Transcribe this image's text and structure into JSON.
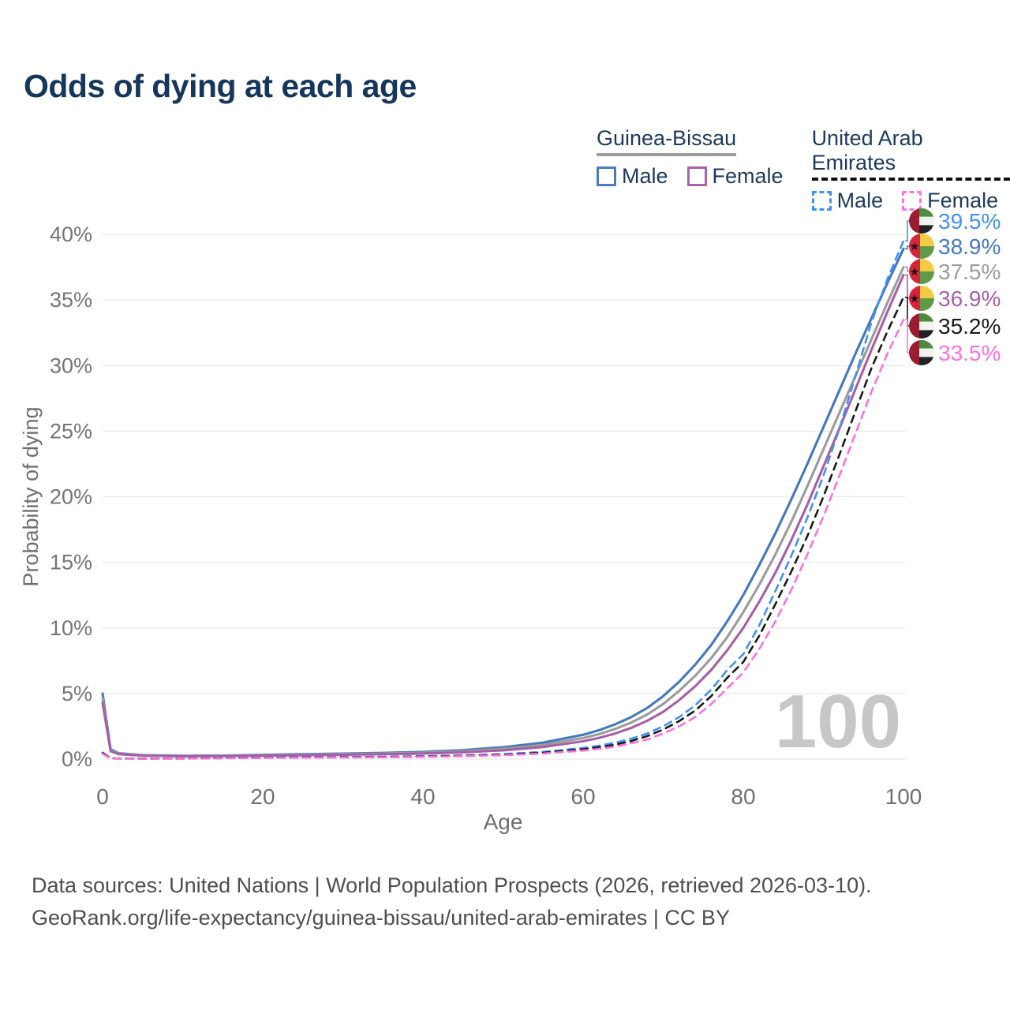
{
  "title": "Odds of dying at each age",
  "legend": {
    "groups": [
      {
        "name": "Guinea-Bissau",
        "line_style": "solid",
        "underline_color": "#9e9e9e",
        "items": [
          {
            "label": "Male",
            "color": "#4a7dbe"
          },
          {
            "label": "Female",
            "color": "#a963a9"
          }
        ]
      },
      {
        "name": "United Arab Emirates",
        "line_style": "dashed",
        "underline_color": "#111111",
        "items": [
          {
            "label": "Male",
            "color": "#3f8fee"
          },
          {
            "label": "Female",
            "color": "#ff74dd"
          }
        ]
      }
    ]
  },
  "chart_data": {
    "type": "line",
    "title": "Odds of dying at each age",
    "xlabel": "Age",
    "ylabel": "Probability of dying",
    "xlim": [
      0,
      100
    ],
    "ylim_percent": [
      0,
      40
    ],
    "xticks": [
      0,
      20,
      40,
      60,
      80,
      100
    ],
    "yticks_percent": [
      0,
      5,
      10,
      15,
      20,
      25,
      30,
      35,
      40
    ],
    "grid": "horizontal",
    "age_watermark": "100",
    "x": [
      0,
      1,
      2,
      5,
      10,
      15,
      20,
      25,
      30,
      35,
      40,
      45,
      50,
      55,
      60,
      62,
      64,
      66,
      68,
      70,
      72,
      74,
      76,
      78,
      80,
      82,
      84,
      86,
      88,
      90,
      92,
      94,
      96,
      98,
      100
    ],
    "series": [
      {
        "id": "guinea-bissau-male",
        "name": "Guinea-Bissau Male",
        "flag": "guinea-bissau",
        "dashed": false,
        "color": "#4478bd",
        "end_label": "38.9%",
        "values": [
          5.0,
          0.75,
          0.45,
          0.3,
          0.25,
          0.27,
          0.32,
          0.37,
          0.42,
          0.47,
          0.55,
          0.68,
          0.9,
          1.25,
          1.85,
          2.2,
          2.65,
          3.2,
          3.9,
          4.8,
          5.9,
          7.2,
          8.7,
          10.5,
          12.5,
          14.8,
          17.2,
          19.8,
          22.5,
          25.3,
          28.1,
          30.9,
          33.6,
          36.3,
          38.9
        ]
      },
      {
        "id": "guinea-bissau-both",
        "name": "Guinea-Bissau Both sexes",
        "flag": "guinea-bissau",
        "dashed": false,
        "color": "#9b9b9b",
        "end_label": "37.5%",
        "values": [
          4.65,
          0.68,
          0.42,
          0.28,
          0.23,
          0.25,
          0.29,
          0.33,
          0.38,
          0.42,
          0.49,
          0.6,
          0.78,
          1.08,
          1.6,
          1.9,
          2.3,
          2.78,
          3.4,
          4.2,
          5.2,
          6.35,
          7.7,
          9.3,
          11.2,
          13.3,
          15.6,
          18.1,
          20.8,
          23.6,
          26.4,
          29.2,
          32.0,
          34.8,
          37.5
        ]
      },
      {
        "id": "guinea-bissau-female",
        "name": "Guinea-Bissau Female",
        "flag": "guinea-bissau",
        "dashed": false,
        "color": "#a560a5",
        "end_label": "36.9%",
        "values": [
          4.3,
          0.6,
          0.38,
          0.26,
          0.21,
          0.22,
          0.26,
          0.29,
          0.33,
          0.37,
          0.43,
          0.52,
          0.67,
          0.92,
          1.36,
          1.62,
          1.95,
          2.38,
          2.92,
          3.6,
          4.5,
          5.55,
          6.8,
          8.3,
          10.0,
          12.0,
          14.2,
          16.7,
          19.4,
          22.3,
          25.2,
          28.2,
          31.2,
          34.1,
          36.9
        ]
      },
      {
        "id": "united-arab-emirates-male",
        "name": "United Arab Emirates Male",
        "flag": "united-arab-emirates",
        "dashed": true,
        "color": "#4191f2",
        "end_label": "39.5%",
        "values": [
          0.5,
          0.06,
          0.05,
          0.04,
          0.05,
          0.08,
          0.12,
          0.14,
          0.16,
          0.18,
          0.22,
          0.28,
          0.38,
          0.55,
          0.85,
          1.02,
          1.25,
          1.55,
          1.95,
          2.5,
          3.2,
          4.1,
          5.3,
          6.8,
          8.0,
          10.2,
          12.8,
          15.5,
          18.4,
          21.6,
          25.2,
          29.2,
          33.3,
          36.6,
          39.5
        ]
      },
      {
        "id": "united-arab-emirates-both",
        "name": "United Arab Emirates Both sexes",
        "flag": "united-arab-emirates",
        "dashed": true,
        "color": "#1a1a1a",
        "end_label": "35.2%",
        "values": [
          0.45,
          0.055,
          0.045,
          0.035,
          0.045,
          0.07,
          0.1,
          0.12,
          0.14,
          0.16,
          0.19,
          0.25,
          0.33,
          0.48,
          0.75,
          0.9,
          1.1,
          1.38,
          1.75,
          2.25,
          2.9,
          3.7,
          4.8,
          6.2,
          7.4,
          9.4,
          11.8,
          14.3,
          17.0,
          20.0,
          23.2,
          26.5,
          29.8,
          32.6,
          35.2
        ]
      },
      {
        "id": "united-arab-emirates-female",
        "name": "United Arab Emirates Female",
        "flag": "united-arab-emirates",
        "dashed": true,
        "color": "#ff70dd",
        "end_label": "33.5%",
        "values": [
          0.4,
          0.05,
          0.04,
          0.03,
          0.04,
          0.06,
          0.09,
          0.1,
          0.12,
          0.14,
          0.17,
          0.22,
          0.29,
          0.42,
          0.65,
          0.78,
          0.95,
          1.2,
          1.5,
          1.95,
          2.5,
          3.2,
          4.2,
          5.4,
          6.6,
          8.4,
          10.5,
          12.9,
          15.6,
          18.5,
          21.6,
          24.8,
          28.0,
          30.9,
          33.5
        ]
      }
    ],
    "flag_colors": {
      "guinea-bissau": {
        "red": "#d8233d",
        "yellow": "#f5ca45",
        "green": "#5f9a47",
        "star": "#111111"
      },
      "united-arab-emirates": {
        "red": "#9b1b30",
        "green": "#4e8a41",
        "white": "#f2f2ee",
        "black": "#222222"
      }
    }
  },
  "footer": {
    "line1": "Data sources: United Nations | World Population Prospects (2026, retrieved 2026-03-10).",
    "line2": "GeoRank.org/life-expectancy/guinea-bissau/united-arab-emirates | CC BY"
  }
}
